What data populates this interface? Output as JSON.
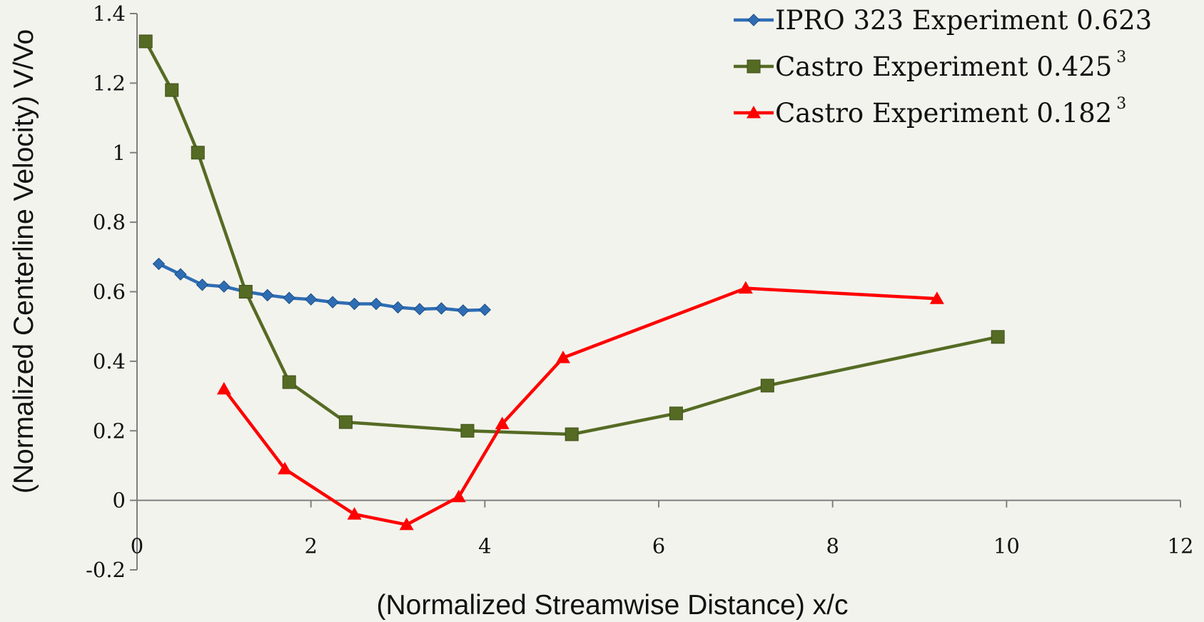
{
  "chart_data": {
    "type": "line",
    "xlabel": "(Normalized Streamwise Distance) x/c",
    "ylabel": "(Normalized Centerline Velocity) V/Vo",
    "xlim": [
      0,
      12
    ],
    "ylim": [
      -0.2,
      1.4
    ],
    "x_ticks": [
      0,
      2,
      4,
      6,
      8,
      10,
      12
    ],
    "y_ticks": [
      -0.2,
      0,
      0.2,
      0.4,
      0.6,
      0.8,
      1,
      1.2,
      1.4
    ],
    "x_tick_labels": [
      "0",
      "2",
      "4",
      "6",
      "8",
      "10",
      "12"
    ],
    "y_tick_labels": [
      "-0.2",
      "0",
      "0.2",
      "0.4",
      "0.6",
      "0.8",
      "1",
      "1.2",
      "1.4"
    ],
    "grid": false,
    "legend_position": "top-right",
    "series": [
      {
        "name": "IPRO 323 Experiment 0.623",
        "superscript": "",
        "color": "#2e6db4",
        "marker": "diamond",
        "x": [
          0.25,
          0.5,
          0.75,
          1.0,
          1.25,
          1.5,
          1.75,
          2.0,
          2.25,
          2.5,
          2.75,
          3.0,
          3.25,
          3.5,
          3.75,
          4.0
        ],
        "y": [
          0.68,
          0.65,
          0.62,
          0.615,
          0.6,
          0.59,
          0.582,
          0.578,
          0.57,
          0.565,
          0.565,
          0.555,
          0.55,
          0.552,
          0.546,
          0.548
        ]
      },
      {
        "name": "Castro Experiment 0.425",
        "superscript": "3",
        "color": "#556b24",
        "marker": "square",
        "x": [
          0.1,
          0.4,
          0.7,
          1.25,
          1.75,
          2.4,
          3.8,
          5.0,
          6.2,
          7.25,
          9.9
        ],
        "y": [
          1.32,
          1.18,
          1.0,
          0.6,
          0.34,
          0.225,
          0.2,
          0.19,
          0.25,
          0.33,
          0.47
        ]
      },
      {
        "name": "Castro Experiment 0.182",
        "superscript": "3",
        "color": "#ff0000",
        "marker": "triangle",
        "x": [
          1.0,
          1.7,
          2.5,
          3.1,
          3.7,
          4.2,
          4.9,
          7.0,
          9.2
        ],
        "y": [
          0.32,
          0.09,
          -0.04,
          -0.07,
          0.01,
          0.22,
          0.41,
          0.61,
          0.58
        ]
      }
    ]
  }
}
